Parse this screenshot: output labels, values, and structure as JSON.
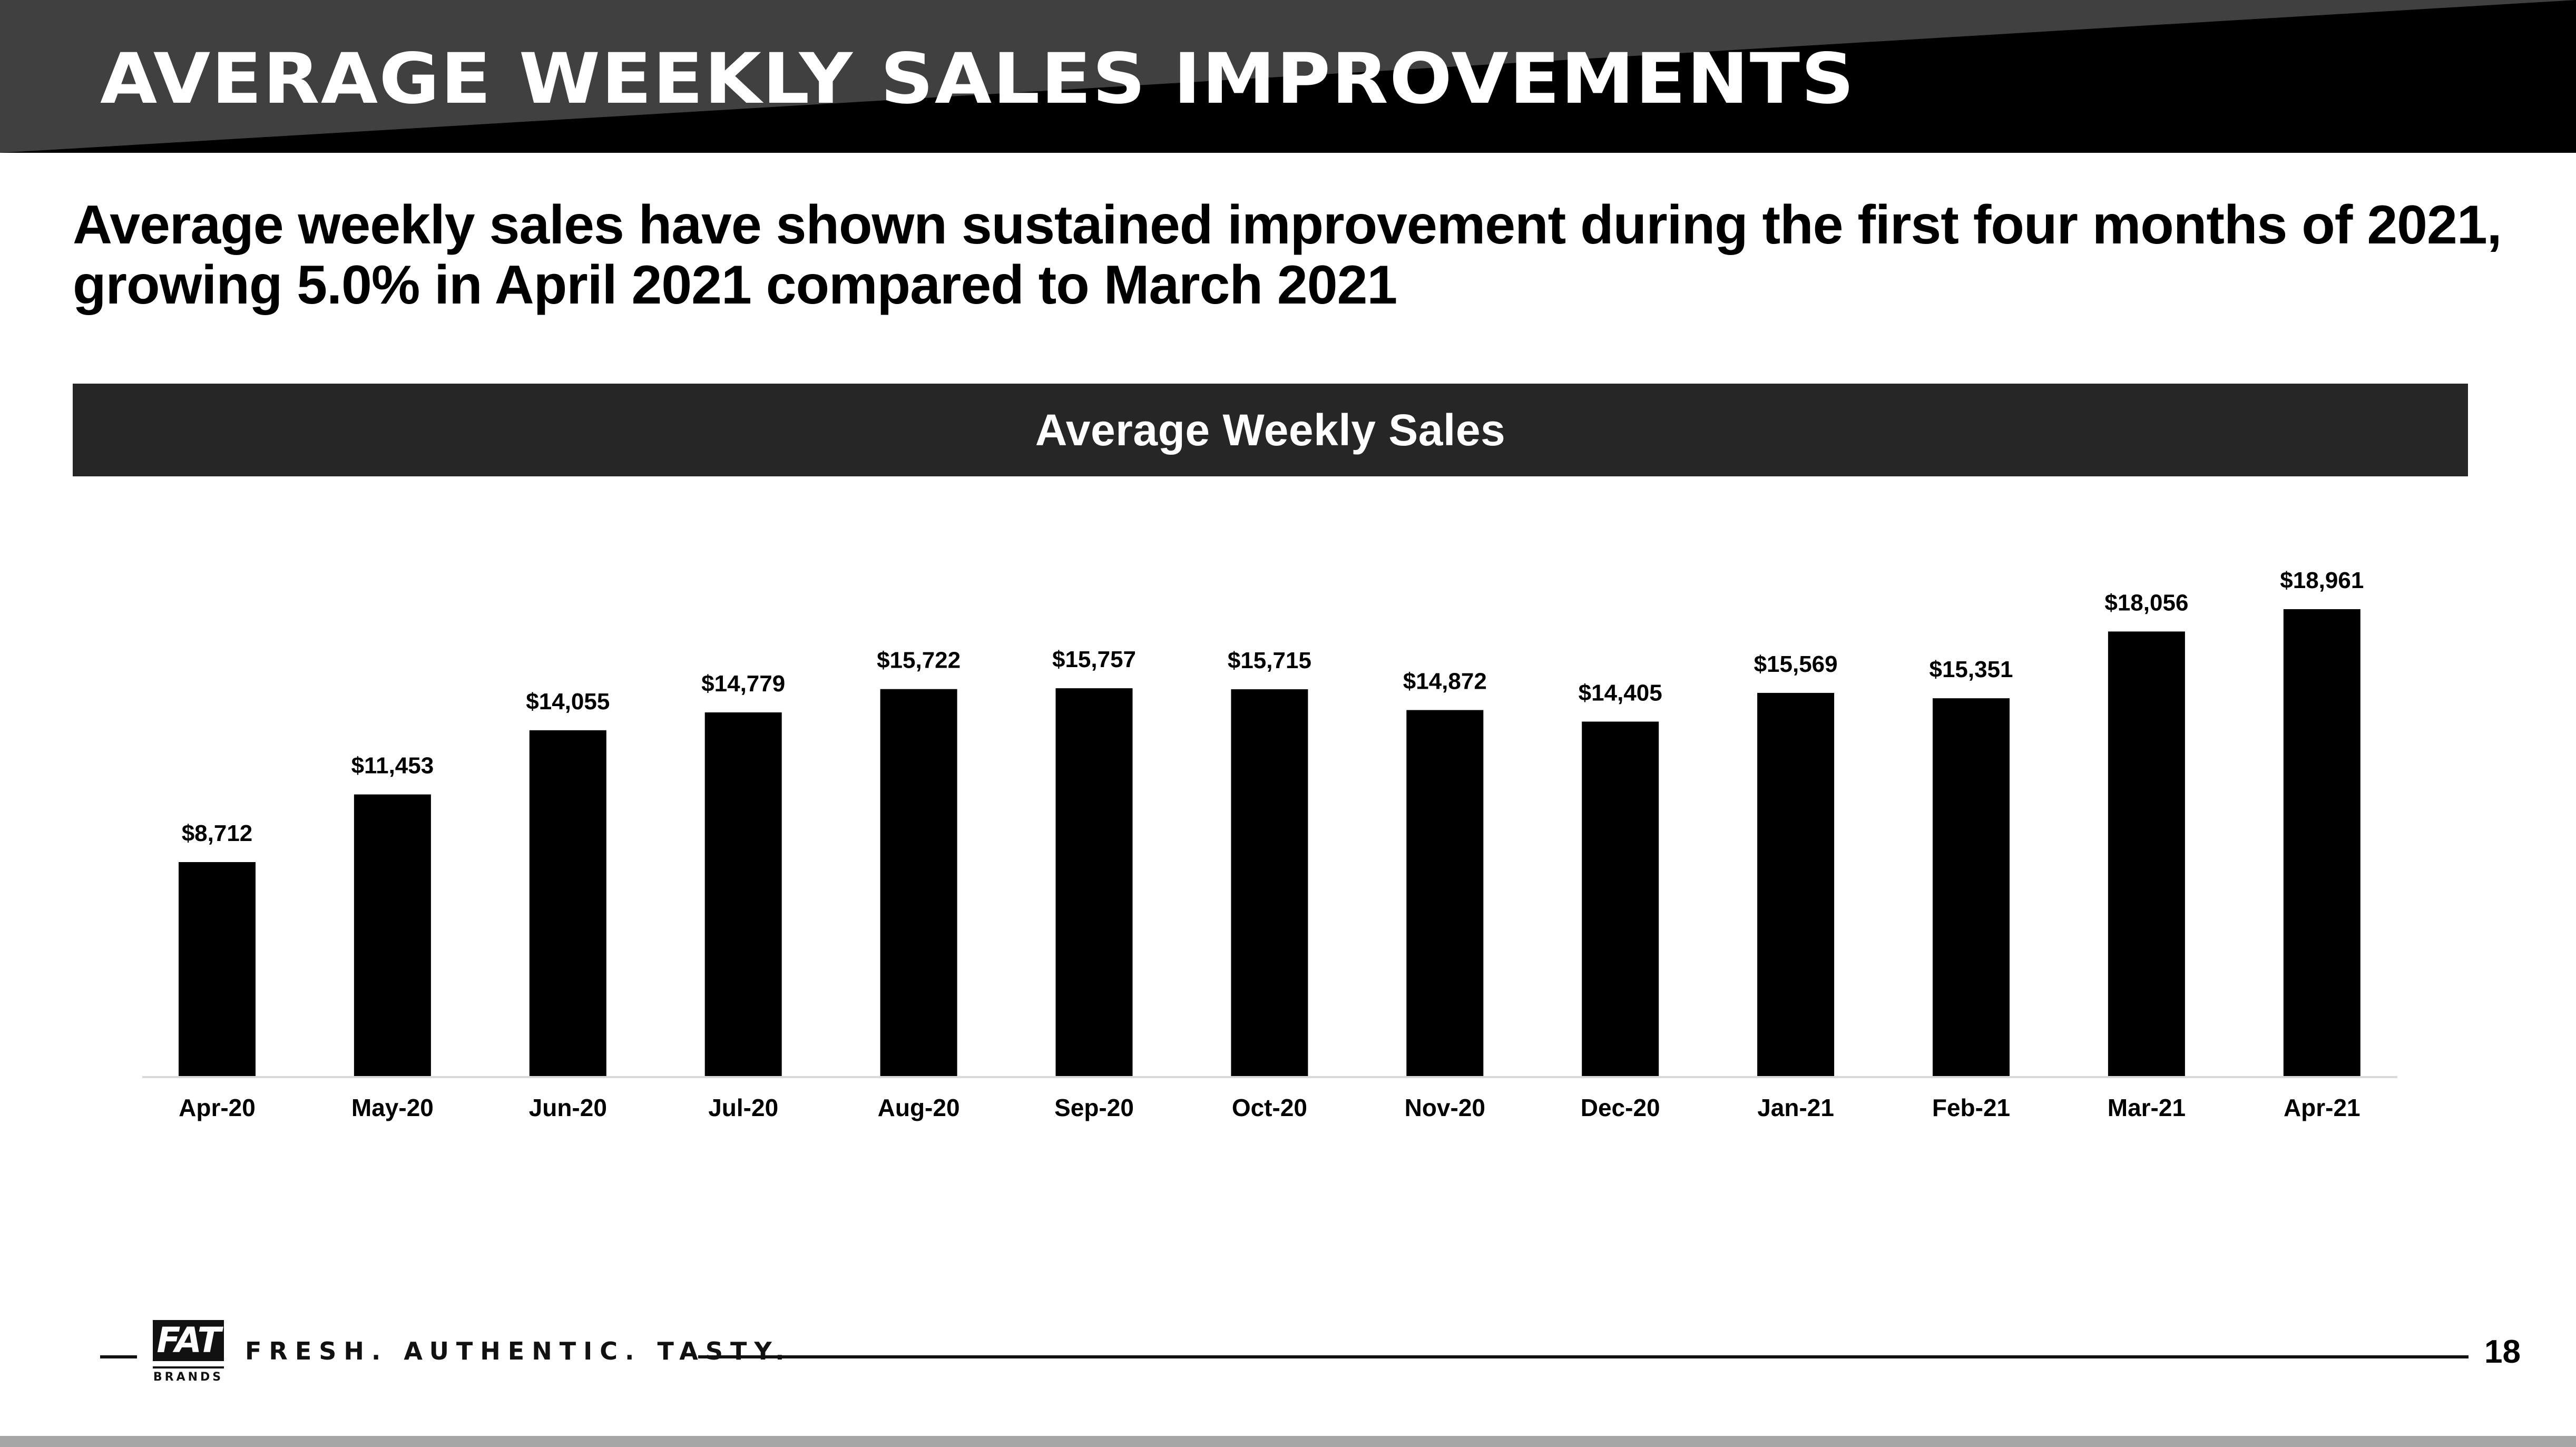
{
  "header": {
    "title": "AVERAGE WEEKLY SALES IMPROVEMENTS"
  },
  "subtitle": {
    "line1": "Average weekly sales have shown sustained improvement during the first four months of 2021,",
    "line2": "growing 5.0% in April 2021 compared to March 2021"
  },
  "footer": {
    "logo_top": "FAT",
    "logo_bottom": "BRANDS",
    "tagline": "FRESH. AUTHENTIC. TASTY.",
    "page_number": "18"
  },
  "colors": {
    "header_dark": "#000000",
    "header_gray": "#404040",
    "banner": "#262626",
    "bar": "#000000",
    "axis": "#d9d9d9",
    "bottom_strip": "#a6a6a6"
  },
  "chart_data": {
    "type": "bar",
    "title": "Average Weekly Sales",
    "categories": [
      "Apr-20",
      "May-20",
      "Jun-20",
      "Jul-20",
      "Aug-20",
      "Sep-20",
      "Oct-20",
      "Nov-20",
      "Dec-20",
      "Jan-21",
      "Feb-21",
      "Mar-21",
      "Apr-21"
    ],
    "values": [
      8712,
      11453,
      14055,
      14779,
      15722,
      15757,
      15715,
      14872,
      14405,
      15569,
      15351,
      18056,
      18961
    ],
    "data_labels": [
      "$8,712",
      "$11,453",
      "$14,055",
      "$14,779",
      "$15,722",
      "$15,757",
      "$15,715",
      "$14,872",
      "$14,405",
      "$15,569",
      "$15,351",
      "$18,056",
      "$18,961"
    ],
    "xlabel": "",
    "ylabel": "",
    "ylim": [
      0,
      18961
    ],
    "grid": false,
    "legend": "none"
  }
}
